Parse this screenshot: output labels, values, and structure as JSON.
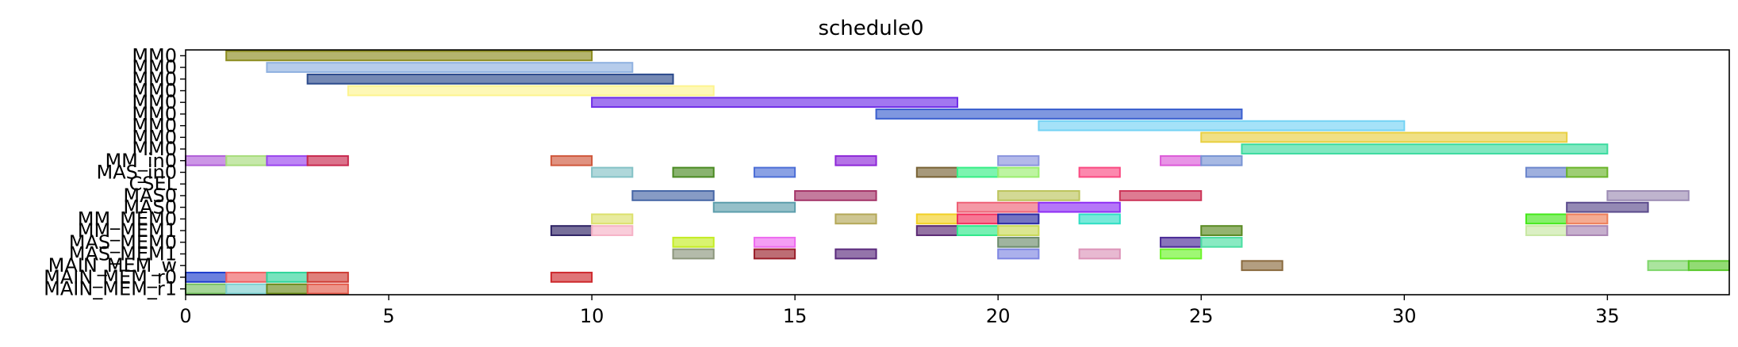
{
  "chart_data": {
    "type": "gantt",
    "title": "schedule0",
    "xlabel": "",
    "ylabel": "",
    "xlim": [
      0,
      38
    ],
    "xticks": [
      0,
      5,
      10,
      15,
      20,
      25,
      30,
      35
    ],
    "ylabels": [
      "MM0",
      "MM0",
      "MM0",
      "MM0",
      "MM0",
      "MM0",
      "MM0",
      "MM0",
      "MM0",
      "MM_in0",
      "MAS_in0",
      "CSEL",
      "MAS0",
      "MAS0",
      "MM_MEM0",
      "MM_MEM1",
      "MAS_MEM0",
      "MAS_MEM1",
      "MAIN_MEM_w",
      "MAIN_MEM_r0",
      "MAIN_MEM_r1"
    ],
    "tasks": [
      {
        "row": 0,
        "start": 1,
        "end": 10,
        "color": "#8c8c1e"
      },
      {
        "row": 1,
        "start": 2,
        "end": 11,
        "color": "#8fb1e0"
      },
      {
        "row": 2,
        "start": 3,
        "end": 12,
        "color": "#2b4a8c"
      },
      {
        "row": 3,
        "start": 4,
        "end": 13,
        "color": "#fdf48f"
      },
      {
        "row": 4,
        "start": 10,
        "end": 19,
        "color": "#6f2ee8"
      },
      {
        "row": 5,
        "start": 17,
        "end": 26,
        "color": "#3a5fcf"
      },
      {
        "row": 6,
        "start": 21,
        "end": 30,
        "color": "#74d3f4"
      },
      {
        "row": 7,
        "start": 25,
        "end": 34,
        "color": "#e8d043"
      },
      {
        "row": 8,
        "start": 26,
        "end": 35,
        "color": "#3ddba0"
      },
      {
        "row": 9,
        "start": 0,
        "end": 1,
        "color": "#b05ed8"
      },
      {
        "row": 9,
        "start": 1,
        "end": 2,
        "color": "#a8dc7c"
      },
      {
        "row": 9,
        "start": 2,
        "end": 3,
        "color": "#9a45ee"
      },
      {
        "row": 9,
        "start": 3,
        "end": 4,
        "color": "#c8284e"
      },
      {
        "row": 9,
        "start": 9,
        "end": 10,
        "color": "#d0583c"
      },
      {
        "row": 9,
        "start": 16,
        "end": 17,
        "color": "#8e28d8"
      },
      {
        "row": 9,
        "start": 20,
        "end": 21,
        "color": "#8a94de"
      },
      {
        "row": 9,
        "start": 24,
        "end": 25,
        "color": "#dc5ad8"
      },
      {
        "row": 9,
        "start": 25,
        "end": 26,
        "color": "#7894d4"
      },
      {
        "row": 10,
        "start": 10,
        "end": 11,
        "color": "#84c2c6"
      },
      {
        "row": 10,
        "start": 12,
        "end": 13,
        "color": "#4a8a22"
      },
      {
        "row": 10,
        "start": 14,
        "end": 15,
        "color": "#4c6ed6"
      },
      {
        "row": 10,
        "start": 18,
        "end": 19,
        "color": "#786234"
      },
      {
        "row": 10,
        "start": 19,
        "end": 20,
        "color": "#36ee86"
      },
      {
        "row": 10,
        "start": 20,
        "end": 21,
        "color": "#9aee6e"
      },
      {
        "row": 10,
        "start": 22,
        "end": 23,
        "color": "#fa4a82"
      },
      {
        "row": 10,
        "start": 33,
        "end": 34,
        "color": "#6c86cc"
      },
      {
        "row": 10,
        "start": 34,
        "end": 35,
        "color": "#6ab42a"
      },
      {
        "row": 12,
        "start": 11,
        "end": 13,
        "color": "#4666a6"
      },
      {
        "row": 12,
        "start": 15,
        "end": 17,
        "color": "#a43468"
      },
      {
        "row": 12,
        "start": 20,
        "end": 22,
        "color": "#bcc45c"
      },
      {
        "row": 12,
        "start": 23,
        "end": 25,
        "color": "#cc3458"
      },
      {
        "row": 12,
        "start": 35,
        "end": 37,
        "color": "#9c8cb4"
      },
      {
        "row": 13,
        "start": 13,
        "end": 15,
        "color": "#5c9eac"
      },
      {
        "row": 13,
        "start": 19,
        "end": 21,
        "color": "#ee6276"
      },
      {
        "row": 13,
        "start": 21,
        "end": 23,
        "color": "#8e2ef4"
      },
      {
        "row": 13,
        "start": 34,
        "end": 36,
        "color": "#5a4a8c"
      },
      {
        "row": 14,
        "start": 10,
        "end": 11,
        "color": "#dce06c"
      },
      {
        "row": 14,
        "start": 16,
        "end": 17,
        "color": "#b4a858"
      },
      {
        "row": 14,
        "start": 18,
        "end": 19,
        "color": "#f2d024"
      },
      {
        "row": 14,
        "start": 19,
        "end": 20,
        "color": "#f22e5a"
      },
      {
        "row": 14,
        "start": 20,
        "end": 21,
        "color": "#2a2aa2"
      },
      {
        "row": 14,
        "start": 22,
        "end": 23,
        "color": "#2edec4"
      },
      {
        "row": 14,
        "start": 33,
        "end": 34,
        "color": "#44e81a"
      },
      {
        "row": 14,
        "start": 34,
        "end": 35,
        "color": "#ee7e58"
      },
      {
        "row": 15,
        "start": 9,
        "end": 10,
        "color": "#2e2264"
      },
      {
        "row": 15,
        "start": 10,
        "end": 11,
        "color": "#f6b2c6"
      },
      {
        "row": 15,
        "start": 18,
        "end": 19,
        "color": "#5a2872"
      },
      {
        "row": 15,
        "start": 19,
        "end": 20,
        "color": "#2ee88a"
      },
      {
        "row": 15,
        "start": 20,
        "end": 21,
        "color": "#c8d856"
      },
      {
        "row": 15,
        "start": 25,
        "end": 26,
        "color": "#5a8a22"
      },
      {
        "row": 15,
        "start": 33,
        "end": 34,
        "color": "#c8e8a4"
      },
      {
        "row": 15,
        "start": 34,
        "end": 35,
        "color": "#a884b2"
      },
      {
        "row": 16,
        "start": 12,
        "end": 13,
        "color": "#c4ec24"
      },
      {
        "row": 16,
        "start": 14,
        "end": 15,
        "color": "#ee6af0"
      },
      {
        "row": 16,
        "start": 20,
        "end": 21,
        "color": "#6c8c6c"
      },
      {
        "row": 16,
        "start": 24,
        "end": 25,
        "color": "#4a2a96"
      },
      {
        "row": 16,
        "start": 25,
        "end": 26,
        "color": "#4adea2"
      },
      {
        "row": 17,
        "start": 12,
        "end": 13,
        "color": "#8c967c"
      },
      {
        "row": 17,
        "start": 14,
        "end": 15,
        "color": "#9a1e2a"
      },
      {
        "row": 17,
        "start": 16,
        "end": 17,
        "color": "#5a2a7c"
      },
      {
        "row": 17,
        "start": 20,
        "end": 21,
        "color": "#7e86e2"
      },
      {
        "row": 17,
        "start": 22,
        "end": 23,
        "color": "#dc94b8"
      },
      {
        "row": 17,
        "start": 24,
        "end": 25,
        "color": "#6cf42a"
      },
      {
        "row": 18,
        "start": 26,
        "end": 27,
        "color": "#8a6a3e"
      },
      {
        "row": 18,
        "start": 36,
        "end": 37,
        "color": "#7ed66a"
      },
      {
        "row": 18,
        "start": 37,
        "end": 38,
        "color": "#58c82a"
      },
      {
        "row": 19,
        "start": 0,
        "end": 1,
        "color": "#1c3ccc"
      },
      {
        "row": 19,
        "start": 1,
        "end": 2,
        "color": "#ee6062"
      },
      {
        "row": 19,
        "start": 2,
        "end": 3,
        "color": "#2ed49a"
      },
      {
        "row": 19,
        "start": 3,
        "end": 4,
        "color": "#ce3c34"
      },
      {
        "row": 19,
        "start": 9,
        "end": 10,
        "color": "#ce2a2e"
      },
      {
        "row": 20,
        "start": 0,
        "end": 1,
        "color": "#74c060"
      },
      {
        "row": 20,
        "start": 1,
        "end": 2,
        "color": "#7cd0d0"
      },
      {
        "row": 20,
        "start": 2,
        "end": 3,
        "color": "#6a8a1a"
      },
      {
        "row": 20,
        "start": 3,
        "end": 4,
        "color": "#e45a4a"
      }
    ]
  }
}
